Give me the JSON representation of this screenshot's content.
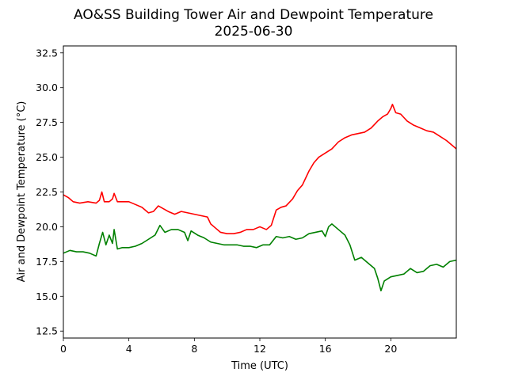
{
  "chart_data": {
    "type": "line",
    "title": "AO&SS Building Tower Air and Dewpoint Temperature",
    "subtitle": "2025-06-30",
    "xlabel": "Time (UTC)",
    "ylabel": "Air and Dewpoint Temperature (°C)",
    "xlim": [
      0,
      24
    ],
    "ylim": [
      12.0,
      33.0
    ],
    "x_ticks": [
      0,
      4,
      8,
      12,
      16,
      20
    ],
    "x_tick_labels": [
      "0",
      "4",
      "8",
      "12",
      "16",
      "20"
    ],
    "y_ticks": [
      12.5,
      15.0,
      17.5,
      20.0,
      22.5,
      25.0,
      27.5,
      30.0,
      32.5
    ],
    "y_tick_labels": [
      "12.5",
      "15.0",
      "17.5",
      "20.0",
      "22.5",
      "25.0",
      "27.5",
      "30.0",
      "32.5"
    ],
    "grid": false,
    "legend": "none",
    "series": [
      {
        "color": "#ff0000",
        "x": [
          0,
          0.3,
          0.6,
          1.0,
          1.5,
          2.0,
          2.2,
          2.35,
          2.5,
          2.8,
          3.0,
          3.1,
          3.3,
          3.6,
          4.0,
          4.4,
          4.8,
          5.2,
          5.5,
          5.8,
          6.1,
          6.4,
          6.8,
          7.2,
          7.6,
          8.0,
          8.4,
          8.8,
          9.0,
          9.3,
          9.6,
          10.0,
          10.4,
          10.8,
          11.2,
          11.6,
          12.0,
          12.4,
          12.7,
          13.0,
          13.3,
          13.6,
          14.0,
          14.3,
          14.6,
          15.0,
          15.3,
          15.6,
          16.0,
          16.4,
          16.8,
          17.2,
          17.6,
          18.0,
          18.4,
          18.8,
          19.2,
          19.5,
          19.8,
          20.0,
          20.1,
          20.3,
          20.6,
          21.0,
          21.4,
          21.8,
          22.2,
          22.6,
          23.0,
          23.4,
          23.8,
          24.0
        ],
        "y": [
          22.3,
          22.1,
          21.8,
          21.7,
          21.8,
          21.7,
          21.9,
          22.5,
          21.8,
          21.8,
          22.0,
          22.4,
          21.8,
          21.8,
          21.8,
          21.6,
          21.4,
          21.0,
          21.1,
          21.5,
          21.3,
          21.1,
          20.9,
          21.1,
          21.0,
          20.9,
          20.8,
          20.7,
          20.2,
          19.9,
          19.6,
          19.5,
          19.5,
          19.6,
          19.8,
          19.8,
          20.0,
          19.8,
          20.1,
          21.2,
          21.4,
          21.5,
          22.0,
          22.6,
          23.0,
          24.0,
          24.6,
          25.0,
          25.3,
          25.6,
          26.1,
          26.4,
          26.6,
          26.7,
          26.8,
          27.1,
          27.6,
          27.9,
          28.1,
          28.5,
          28.8,
          28.2,
          28.1,
          27.6,
          27.3,
          27.1,
          26.9,
          26.8,
          26.5,
          26.2,
          25.8,
          25.6
        ]
      },
      {
        "color": "#008000",
        "x": [
          0,
          0.4,
          0.8,
          1.2,
          1.6,
          2.0,
          2.2,
          2.4,
          2.6,
          2.8,
          3.0,
          3.1,
          3.3,
          3.6,
          4.0,
          4.4,
          4.8,
          5.2,
          5.6,
          5.9,
          6.2,
          6.6,
          7.0,
          7.4,
          7.6,
          7.8,
          8.2,
          8.6,
          9.0,
          9.4,
          9.8,
          10.2,
          10.6,
          11.0,
          11.4,
          11.8,
          12.2,
          12.6,
          13.0,
          13.4,
          13.8,
          14.2,
          14.6,
          15.0,
          15.4,
          15.8,
          16.0,
          16.2,
          16.4,
          16.8,
          17.2,
          17.5,
          17.8,
          18.2,
          18.6,
          19.0,
          19.2,
          19.4,
          19.6,
          20.0,
          20.4,
          20.8,
          21.2,
          21.6,
          22.0,
          22.4,
          22.8,
          23.2,
          23.6,
          24.0
        ],
        "y": [
          18.1,
          18.3,
          18.2,
          18.2,
          18.1,
          17.9,
          18.8,
          19.6,
          18.7,
          19.4,
          18.8,
          19.8,
          18.4,
          18.5,
          18.5,
          18.6,
          18.8,
          19.1,
          19.4,
          20.1,
          19.6,
          19.8,
          19.8,
          19.6,
          19.0,
          19.7,
          19.4,
          19.2,
          18.9,
          18.8,
          18.7,
          18.7,
          18.7,
          18.6,
          18.6,
          18.5,
          18.7,
          18.7,
          19.3,
          19.2,
          19.3,
          19.1,
          19.2,
          19.5,
          19.6,
          19.7,
          19.3,
          20.0,
          20.2,
          19.8,
          19.4,
          18.7,
          17.6,
          17.8,
          17.4,
          17.0,
          16.3,
          15.4,
          16.1,
          16.4,
          16.5,
          16.6,
          17.0,
          16.7,
          16.8,
          17.2,
          17.3,
          17.1,
          17.5,
          17.6
        ]
      }
    ]
  }
}
